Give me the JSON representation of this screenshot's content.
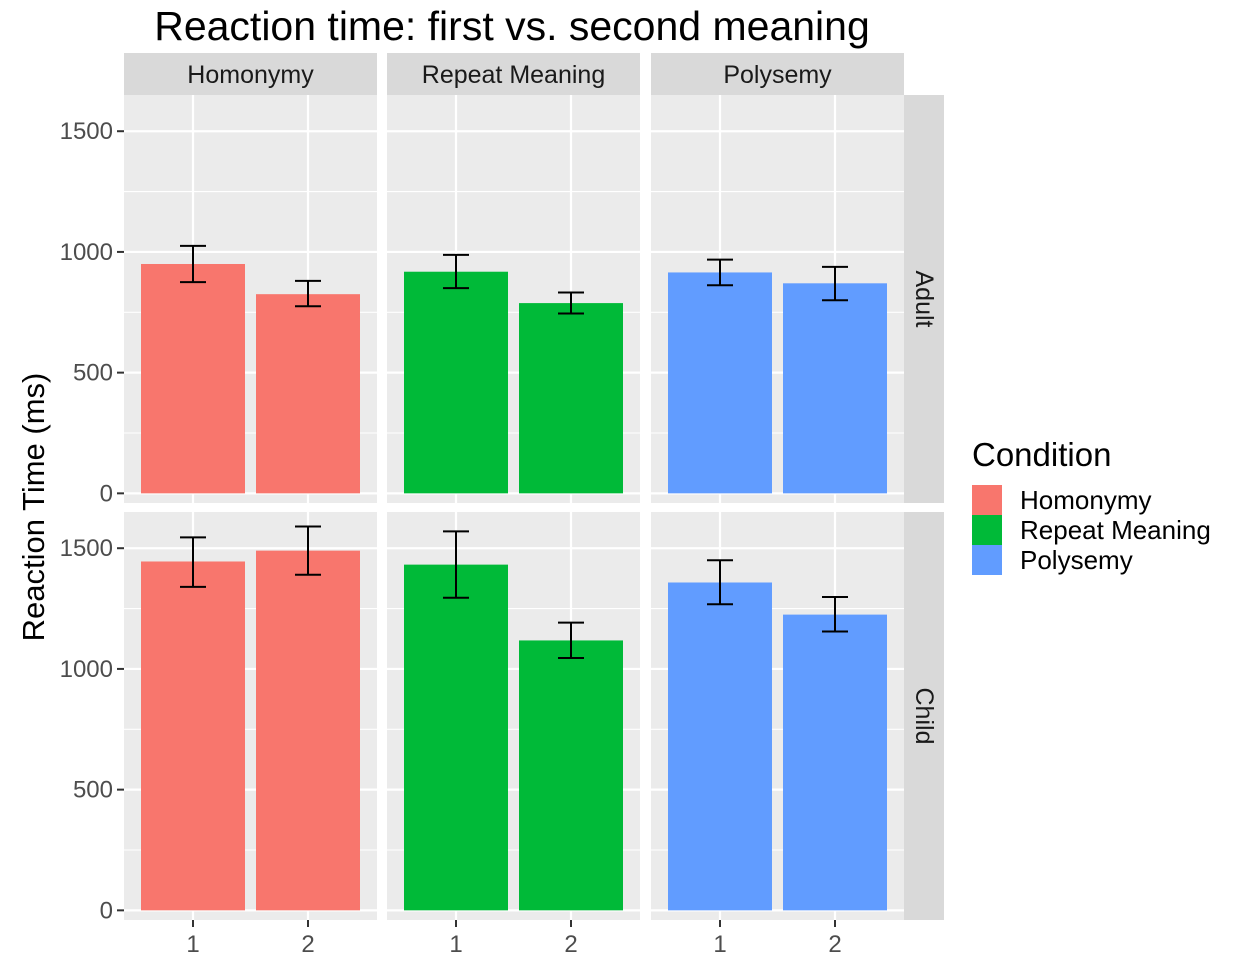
{
  "chart_data": {
    "type": "bar",
    "title": "Reaction time: first vs. second meaning",
    "ylabel": "Reaction Time (ms)",
    "xlabel": "",
    "ylim": [
      -40,
      1650
    ],
    "y_ticks": [
      0,
      500,
      1000,
      1500
    ],
    "categories": [
      "1",
      "2"
    ],
    "facet_columns": [
      "Homonymy",
      "Repeat Meaning",
      "Polysemy"
    ],
    "facet_rows": [
      "Adult",
      "Child"
    ],
    "legend": {
      "title": "Condition",
      "placement": "right",
      "items": [
        {
          "label": "Homonymy",
          "color": "#f8766d"
        },
        {
          "label": "Repeat Meaning",
          "color": "#00ba38"
        },
        {
          "label": "Polysemy",
          "color": "#619cff"
        }
      ]
    },
    "grid": true,
    "series": [
      {
        "row": "Adult",
        "column": "Homonymy",
        "color": "#f8766d",
        "values": [
          950,
          825
        ],
        "err_low": [
          875,
          775
        ],
        "err_high": [
          1025,
          880
        ]
      },
      {
        "row": "Adult",
        "column": "Repeat Meaning",
        "color": "#00ba38",
        "values": [
          918,
          788
        ],
        "err_low": [
          850,
          745
        ],
        "err_high": [
          988,
          832
        ]
      },
      {
        "row": "Adult",
        "column": "Polysemy",
        "color": "#619cff",
        "values": [
          915,
          870
        ],
        "err_low": [
          862,
          800
        ],
        "err_high": [
          968,
          938
        ]
      },
      {
        "row": "Child",
        "column": "Homonymy",
        "color": "#f8766d",
        "values": [
          1445,
          1490
        ],
        "err_low": [
          1340,
          1390
        ],
        "err_high": [
          1545,
          1590
        ]
      },
      {
        "row": "Child",
        "column": "Repeat Meaning",
        "color": "#00ba38",
        "values": [
          1432,
          1118
        ],
        "err_low": [
          1295,
          1045
        ],
        "err_high": [
          1570,
          1192
        ]
      },
      {
        "row": "Child",
        "column": "Polysemy",
        "color": "#619cff",
        "values": [
          1358,
          1225
        ],
        "err_low": [
          1268,
          1155
        ],
        "err_high": [
          1450,
          1298
        ]
      }
    ]
  }
}
